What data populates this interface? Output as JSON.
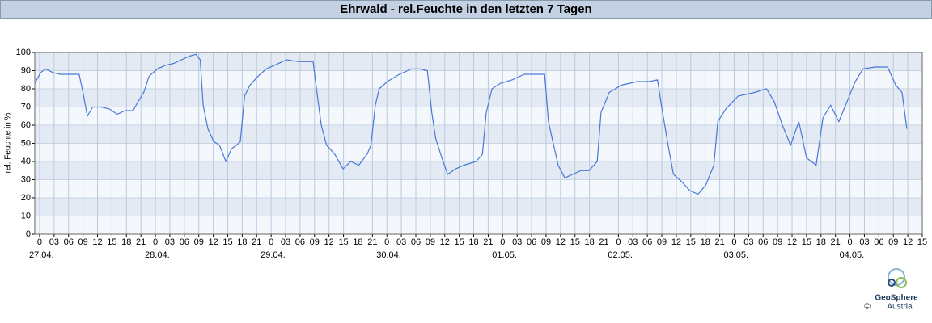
{
  "chart_data": {
    "type": "line",
    "title": "Ehrwald - rel.Feuchte in den letzten 7 Tagen",
    "ylabel": "rel. Feuchte in %",
    "color": "#4a78d8",
    "x": [
      -1.0,
      0.2,
      1.3,
      2.7,
      4.3,
      6.9,
      8.2,
      9.0,
      9.9,
      11.0,
      12.7,
      14.4,
      16.1,
      17.7,
      19.4,
      20.2,
      21.6,
      22.7,
      24.4,
      26.1,
      27.8,
      29.4,
      31.1,
      32.4,
      33.3,
      33.9,
      34.9,
      36.1,
      37.3,
      38.6,
      39.8,
      40.8,
      41.6,
      42.5,
      43.6,
      45.3,
      47.0,
      48.7,
      51.2,
      53.7,
      56.7,
      57.4,
      58.4,
      59.5,
      61.2,
      62.9,
      64.5,
      66.2,
      67.9,
      68.7,
      69.6,
      70.4,
      72.1,
      74.6,
      77.1,
      78.8,
      80.4,
      81.3,
      82.1,
      83.4,
      84.6,
      86.3,
      88.0,
      90.5,
      91.8,
      92.6,
      93.8,
      95.5,
      98.0,
      100.5,
      103.0,
      104.7,
      105.5,
      106.4,
      107.5,
      108.9,
      110.5,
      112.2,
      113.9,
      115.6,
      116.4,
      118.1,
      120.6,
      123.9,
      126.4,
      128.1,
      128.9,
      130.3,
      131.4,
      133.1,
      134.8,
      136.5,
      138.1,
      139.8,
      140.6,
      142.3,
      144.8,
      148.2,
      150.7,
      152.3,
      154.0,
      155.7,
      157.4,
      159.0,
      161.0,
      162.4,
      164.0,
      165.7,
      167.4,
      169.1,
      170.7,
      173.2,
      175.8,
      177.5,
      178.8,
      179.8
    ],
    "values": [
      83,
      89,
      91,
      89,
      88,
      88,
      88,
      78,
      65,
      70,
      70,
      69,
      66,
      68,
      68,
      72,
      78,
      87,
      91,
      93,
      94,
      96,
      98,
      99,
      96,
      71,
      58,
      51,
      49,
      40,
      47,
      49,
      51,
      76,
      82,
      87,
      91,
      93,
      96,
      95,
      95,
      80,
      60,
      49,
      44,
      36,
      40,
      38,
      44,
      49,
      71,
      80,
      84,
      88,
      91,
      91,
      90,
      67,
      53,
      42,
      33,
      36,
      38,
      40,
      44,
      67,
      80,
      83,
      85,
      88,
      88,
      88,
      62,
      51,
      38,
      31,
      33,
      35,
      35,
      40,
      67,
      78,
      82,
      84,
      84,
      85,
      71,
      49,
      33,
      29,
      24,
      22,
      27,
      38,
      62,
      69,
      76,
      78,
      80,
      73,
      60,
      49,
      62,
      42,
      38,
      64,
      71,
      62,
      73,
      84,
      91,
      92,
      92,
      82,
      78,
      58
    ],
    "xlim": [
      -1,
      183
    ],
    "ylim": [
      0,
      100
    ],
    "yticks": [
      0,
      10,
      20,
      30,
      40,
      50,
      60,
      70,
      80,
      90,
      100
    ],
    "xticks": [
      {
        "value": 0,
        "label": "0"
      },
      {
        "value": 3,
        "label": "03"
      },
      {
        "value": 6,
        "label": "06"
      },
      {
        "value": 9,
        "label": "09"
      },
      {
        "value": 12,
        "label": "12"
      },
      {
        "value": 15,
        "label": "15"
      },
      {
        "value": 18,
        "label": "18"
      },
      {
        "value": 21,
        "label": "21"
      },
      {
        "value": 24,
        "label": "0"
      },
      {
        "value": 27,
        "label": "03"
      },
      {
        "value": 30,
        "label": "06"
      },
      {
        "value": 33,
        "label": "09"
      },
      {
        "value": 36,
        "label": "12"
      },
      {
        "value": 39,
        "label": "15"
      },
      {
        "value": 42,
        "label": "18"
      },
      {
        "value": 45,
        "label": "21"
      },
      {
        "value": 48,
        "label": "0"
      },
      {
        "value": 51,
        "label": "03"
      },
      {
        "value": 54,
        "label": "06"
      },
      {
        "value": 57,
        "label": "09"
      },
      {
        "value": 60,
        "label": "12"
      },
      {
        "value": 63,
        "label": "15"
      },
      {
        "value": 66,
        "label": "18"
      },
      {
        "value": 69,
        "label": "21"
      },
      {
        "value": 72,
        "label": "0"
      },
      {
        "value": 75,
        "label": "03"
      },
      {
        "value": 78,
        "label": "06"
      },
      {
        "value": 81,
        "label": "09"
      },
      {
        "value": 84,
        "label": "12"
      },
      {
        "value": 87,
        "label": "15"
      },
      {
        "value": 90,
        "label": "18"
      },
      {
        "value": 93,
        "label": "21"
      },
      {
        "value": 96,
        "label": "0"
      },
      {
        "value": 99,
        "label": "03"
      },
      {
        "value": 102,
        "label": "06"
      },
      {
        "value": 105,
        "label": "09"
      },
      {
        "value": 108,
        "label": "12"
      },
      {
        "value": 111,
        "label": "15"
      },
      {
        "value": 114,
        "label": "18"
      },
      {
        "value": 117,
        "label": "21"
      },
      {
        "value": 120,
        "label": "0"
      },
      {
        "value": 123,
        "label": "03"
      },
      {
        "value": 126,
        "label": "06"
      },
      {
        "value": 129,
        "label": "09"
      },
      {
        "value": 132,
        "label": "12"
      },
      {
        "value": 135,
        "label": "15"
      },
      {
        "value": 138,
        "label": "18"
      },
      {
        "value": 141,
        "label": "21"
      },
      {
        "value": 144,
        "label": "0"
      },
      {
        "value": 147,
        "label": "03"
      },
      {
        "value": 150,
        "label": "06"
      },
      {
        "value": 153,
        "label": "09"
      },
      {
        "value": 156,
        "label": "12"
      },
      {
        "value": 159,
        "label": "15"
      },
      {
        "value": 162,
        "label": "18"
      },
      {
        "value": 165,
        "label": "21"
      },
      {
        "value": 168,
        "label": "0"
      },
      {
        "value": 171,
        "label": "03"
      },
      {
        "value": 174,
        "label": "06"
      },
      {
        "value": 177,
        "label": "09"
      },
      {
        "value": 180,
        "label": "12"
      },
      {
        "value": 183,
        "label": "15"
      }
    ],
    "date_labels": [
      {
        "value": 0,
        "label": "27.04."
      },
      {
        "value": 24,
        "label": "28.04."
      },
      {
        "value": 48,
        "label": "29.04."
      },
      {
        "value": 72,
        "label": "30.04."
      },
      {
        "value": 96,
        "label": "01.05."
      },
      {
        "value": 120,
        "label": "02.05."
      },
      {
        "value": 144,
        "label": "03.05."
      },
      {
        "value": 168,
        "label": "04.05."
      }
    ],
    "grid": true
  },
  "logo": {
    "name": "GeoSphere",
    "sub": "Austria",
    "copyright": "©"
  }
}
